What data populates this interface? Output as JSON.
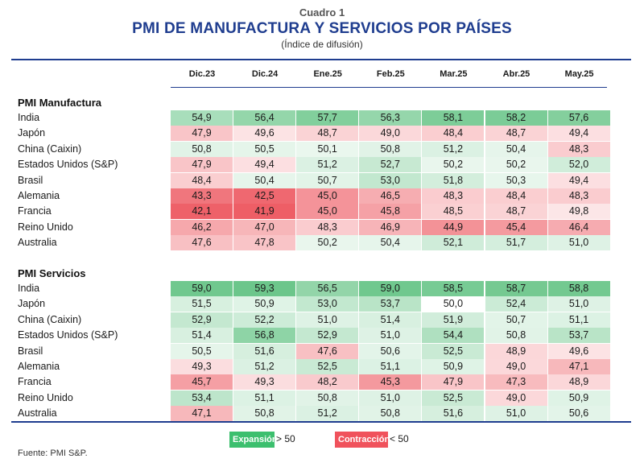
{
  "header": {
    "cuadro": "Cuadro 1",
    "title": "PMI DE MANUFACTURA Y SERVICIOS POR PAÍSES",
    "subtitle": "(Índice de difusión)"
  },
  "columns": [
    "Dic.23",
    "Dic.24",
    "Ene.25",
    "Feb.25",
    "Mar.25",
    "Abr.25",
    "May.25"
  ],
  "sections": [
    {
      "title": "PMI Manufactura",
      "rows": [
        {
          "label": "India",
          "values": [
            "54,9",
            "56,4",
            "57,7",
            "56,3",
            "58,1",
            "58,2",
            "57,6"
          ]
        },
        {
          "label": "Japón",
          "values": [
            "47,9",
            "49,6",
            "48,7",
            "49,0",
            "48,4",
            "48,7",
            "49,4"
          ]
        },
        {
          "label": "China (Caixin)",
          "values": [
            "50,8",
            "50,5",
            "50,1",
            "50,8",
            "51,2",
            "50,4",
            "48,3"
          ]
        },
        {
          "label": "Estados Unidos (S&P)",
          "values": [
            "47,9",
            "49,4",
            "51,2",
            "52,7",
            "50,2",
            "50,2",
            "52,0"
          ]
        },
        {
          "label": "Brasil",
          "values": [
            "48,4",
            "50,4",
            "50,7",
            "53,0",
            "51,8",
            "50,3",
            "49,4"
          ]
        },
        {
          "label": "Alemania",
          "values": [
            "43,3",
            "42,5",
            "45,0",
            "46,5",
            "48,3",
            "48,4",
            "48,3"
          ]
        },
        {
          "label": "Francia",
          "values": [
            "42,1",
            "41,9",
            "45,0",
            "45,8",
            "48,5",
            "48,7",
            "49,8"
          ]
        },
        {
          "label": "Reino Unido",
          "values": [
            "46,2",
            "47,0",
            "48,3",
            "46,9",
            "44,9",
            "45,4",
            "46,4"
          ]
        },
        {
          "label": "Australia",
          "values": [
            "47,6",
            "47,8",
            "50,2",
            "50,4",
            "52,1",
            "51,7",
            "51,0"
          ]
        }
      ]
    },
    {
      "title": "PMI Servicios",
      "rows": [
        {
          "label": "India",
          "values": [
            "59,0",
            "59,3",
            "56,5",
            "59,0",
            "58,5",
            "58,7",
            "58,8"
          ]
        },
        {
          "label": "Japón",
          "values": [
            "51,5",
            "50,9",
            "53,0",
            "53,7",
            "50,0",
            "52,4",
            "51,0"
          ]
        },
        {
          "label": "China (Caixin)",
          "values": [
            "52,9",
            "52,2",
            "51,0",
            "51,4",
            "51,9",
            "50,7",
            "51,1"
          ]
        },
        {
          "label": "Estados Unidos (S&P)",
          "values": [
            "51,4",
            "56,8",
            "52,9",
            "51,0",
            "54,4",
            "50,8",
            "53,7"
          ]
        },
        {
          "label": "Brasil",
          "values": [
            "50,5",
            "51,6",
            "47,6",
            "50,6",
            "52,5",
            "48,9",
            "49,6"
          ]
        },
        {
          "label": "Alemania",
          "values": [
            "49,3",
            "51,2",
            "52,5",
            "51,1",
            "50,9",
            "49,0",
            "47,1"
          ]
        },
        {
          "label": "Francia",
          "values": [
            "45,7",
            "49,3",
            "48,2",
            "45,3",
            "47,9",
            "47,3",
            "48,9"
          ]
        },
        {
          "label": "Reino Unido",
          "values": [
            "53,4",
            "51,1",
            "50,8",
            "51,0",
            "52,5",
            "49,0",
            "50,9"
          ]
        },
        {
          "label": "Australia",
          "values": [
            "47,1",
            "50,8",
            "51,2",
            "50,8",
            "51,6",
            "51,0",
            "50,6"
          ]
        }
      ]
    }
  ],
  "legend": {
    "expansion": {
      "label": "Expansión",
      "note": "> 50",
      "color": "#3cbf6e"
    },
    "contraction": {
      "label": "Contracción",
      "note": "< 50",
      "color": "#f0525c"
    }
  },
  "colors": {
    "green_full": "#5cc07e",
    "red_full": "#ec4c55",
    "title_blue": "#1f3d8f"
  },
  "source": "Fuente: PMI S&P.",
  "chart_data": {
    "type": "heatmap",
    "title": "PMI DE MANUFACTURA Y SERVICIOS POR PAÍSES",
    "subtitle": "(Índice de difusión)",
    "x": [
      "Dic.23",
      "Dic.24",
      "Ene.25",
      "Feb.25",
      "Mar.25",
      "Abr.25",
      "May.25"
    ],
    "threshold": 50,
    "series": [
      {
        "group": "PMI Manufactura",
        "name": "India",
        "values": [
          54.9,
          56.4,
          57.7,
          56.3,
          58.1,
          58.2,
          57.6
        ]
      },
      {
        "group": "PMI Manufactura",
        "name": "Japón",
        "values": [
          47.9,
          49.6,
          48.7,
          49.0,
          48.4,
          48.7,
          49.4
        ]
      },
      {
        "group": "PMI Manufactura",
        "name": "China (Caixin)",
        "values": [
          50.8,
          50.5,
          50.1,
          50.8,
          51.2,
          50.4,
          48.3
        ]
      },
      {
        "group": "PMI Manufactura",
        "name": "Estados Unidos (S&P)",
        "values": [
          47.9,
          49.4,
          51.2,
          52.7,
          50.2,
          50.2,
          52.0
        ]
      },
      {
        "group": "PMI Manufactura",
        "name": "Brasil",
        "values": [
          48.4,
          50.4,
          50.7,
          53.0,
          51.8,
          50.3,
          49.4
        ]
      },
      {
        "group": "PMI Manufactura",
        "name": "Alemania",
        "values": [
          43.3,
          42.5,
          45.0,
          46.5,
          48.3,
          48.4,
          48.3
        ]
      },
      {
        "group": "PMI Manufactura",
        "name": "Francia",
        "values": [
          42.1,
          41.9,
          45.0,
          45.8,
          48.5,
          48.7,
          49.8
        ]
      },
      {
        "group": "PMI Manufactura",
        "name": "Reino Unido",
        "values": [
          46.2,
          47.0,
          48.3,
          46.9,
          44.9,
          45.4,
          46.4
        ]
      },
      {
        "group": "PMI Manufactura",
        "name": "Australia",
        "values": [
          47.6,
          47.8,
          50.2,
          50.4,
          52.1,
          51.7,
          51.0
        ]
      },
      {
        "group": "PMI Servicios",
        "name": "India",
        "values": [
          59.0,
          59.3,
          56.5,
          59.0,
          58.5,
          58.7,
          58.8
        ]
      },
      {
        "group": "PMI Servicios",
        "name": "Japón",
        "values": [
          51.5,
          50.9,
          53.0,
          53.7,
          50.0,
          52.4,
          51.0
        ]
      },
      {
        "group": "PMI Servicios",
        "name": "China (Caixin)",
        "values": [
          52.9,
          52.2,
          51.0,
          51.4,
          51.9,
          50.7,
          51.1
        ]
      },
      {
        "group": "PMI Servicios",
        "name": "Estados Unidos (S&P)",
        "values": [
          51.4,
          56.8,
          52.9,
          51.0,
          54.4,
          50.8,
          53.7
        ]
      },
      {
        "group": "PMI Servicios",
        "name": "Brasil",
        "values": [
          50.5,
          51.6,
          47.6,
          50.6,
          52.5,
          48.9,
          49.6
        ]
      },
      {
        "group": "PMI Servicios",
        "name": "Alemania",
        "values": [
          49.3,
          51.2,
          52.5,
          51.1,
          50.9,
          49.0,
          47.1
        ]
      },
      {
        "group": "PMI Servicios",
        "name": "Francia",
        "values": [
          45.7,
          49.3,
          48.2,
          45.3,
          47.9,
          47.3,
          48.9
        ]
      },
      {
        "group": "PMI Servicios",
        "name": "Reino Unido",
        "values": [
          53.4,
          51.1,
          50.8,
          51.0,
          52.5,
          49.0,
          50.9
        ]
      },
      {
        "group": "PMI Servicios",
        "name": "Australia",
        "values": [
          47.1,
          50.8,
          51.2,
          50.8,
          51.6,
          51.0,
          50.6
        ]
      }
    ]
  }
}
